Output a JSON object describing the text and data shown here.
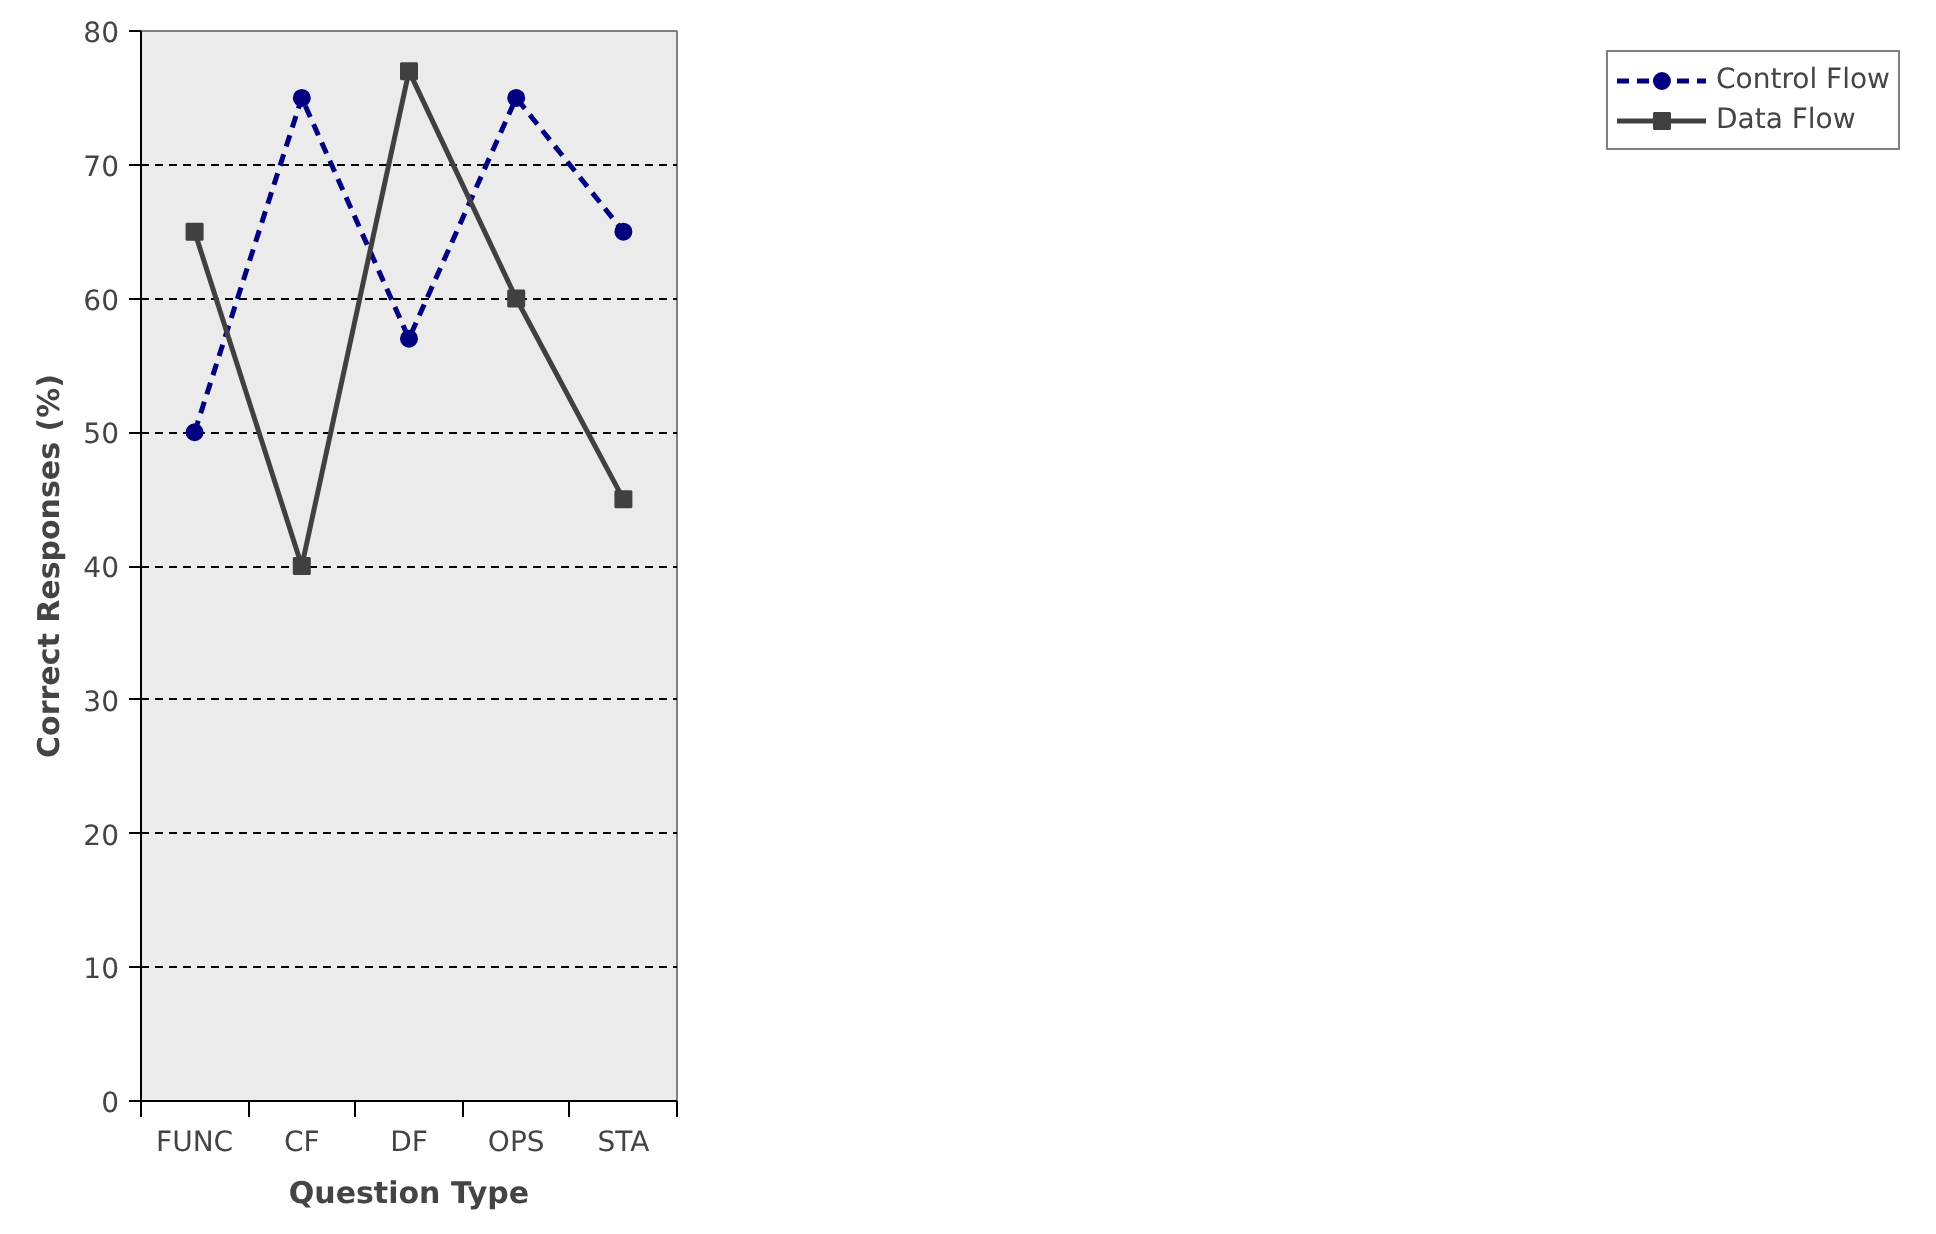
{
  "chart_data": {
    "type": "line",
    "xlabel": "Question Type",
    "ylabel": "Correct Responses (%)",
    "categories": [
      "FUNC",
      "CF",
      "DF",
      "OPS",
      "STA"
    ],
    "series": [
      {
        "name": "Control Flow",
        "color": "#000080",
        "values": [
          50,
          75,
          57,
          75,
          65
        ],
        "marker": "circle",
        "line_style": "dashed"
      },
      {
        "name": "Data Flow",
        "color": "#404040",
        "values": [
          65,
          40,
          77,
          60,
          45
        ],
        "marker": "square",
        "line_style": "solid"
      }
    ],
    "ylim": [
      0,
      80
    ],
    "yticks": [
      0,
      10,
      20,
      30,
      40,
      50,
      60,
      70,
      80
    ],
    "grid": "y",
    "legend": "right"
  }
}
